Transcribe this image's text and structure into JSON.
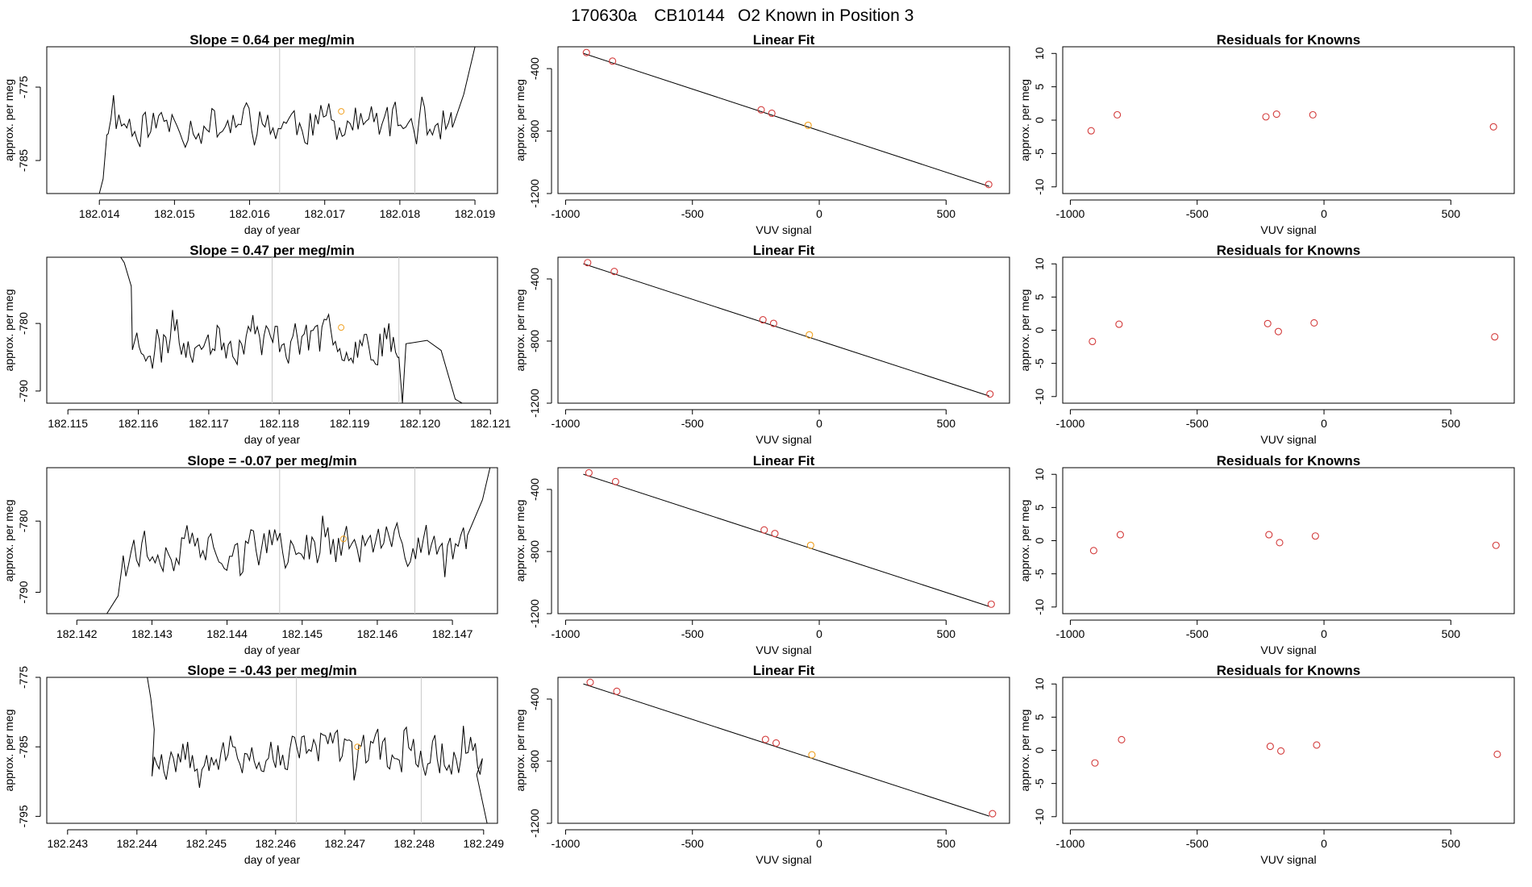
{
  "figure_title": {
    "date": "170630a",
    "cylinder": "CB10144",
    "description": "O2 Known in Position  3"
  },
  "colors": {
    "trace": "#000000",
    "point_red": "#d33c3c",
    "point_orange": "#f0a020",
    "vline": "#c8c8c8"
  },
  "chart_data": [
    {
      "type": "line",
      "row": 1,
      "panel": "timeseries",
      "title": "Slope =  0.64  per meg/min",
      "xlabel": "day of year",
      "ylabel": "approx. per meg",
      "xlim": [
        182.0133,
        182.0193
      ],
      "ylim": [
        -789.5,
        -769.5
      ],
      "xticks": [
        182.014,
        182.015,
        182.016,
        182.017,
        182.018,
        182.019
      ],
      "xtick_labels": [
        "182.014",
        "182.015",
        "182.016",
        "182.017",
        "182.018",
        "182.019"
      ],
      "yticks": [
        -775,
        -785
      ],
      "ytick_labels": [
        "-775",
        "-785"
      ],
      "vlines": [
        182.0164,
        182.0182
      ],
      "highlight_point": {
        "x": 182.01722,
        "y": -778.3
      },
      "trace": {
        "start": 182.0141,
        "end": 182.0187,
        "n": 130,
        "center": -780.0,
        "amp": 3.2,
        "seed": 11,
        "lead_in": [
          [
            182.014,
            -789.5
          ],
          [
            182.01405,
            -787.5
          ],
          [
            182.0141,
            -781.5
          ]
        ],
        "lead_out": [
          [
            182.0187,
            -780.5
          ],
          [
            182.01885,
            -776.0
          ],
          [
            182.019,
            -769.5
          ]
        ]
      }
    },
    {
      "type": "line",
      "row": 2,
      "panel": "timeseries",
      "title": "Slope =  0.47  per meg/min",
      "xlabel": "day of year",
      "ylabel": "approx. per meg",
      "xlim": [
        182.1147,
        182.1211
      ],
      "ylim": [
        -791.8,
        -770.2
      ],
      "xticks": [
        182.115,
        182.116,
        182.117,
        182.118,
        182.119,
        182.12,
        182.121
      ],
      "xtick_labels": [
        "182.115",
        "182.116",
        "182.117",
        "182.118",
        "182.119",
        "182.120",
        "182.121"
      ],
      "yticks": [
        -780,
        -790
      ],
      "ytick_labels": [
        "-780",
        "-790"
      ],
      "vlines": [
        182.1179,
        182.1197
      ],
      "highlight_point": {
        "x": 182.11888,
        "y": -780.6
      },
      "trace": {
        "start": 182.1159,
        "end": 182.1197,
        "n": 120,
        "center": -782.5,
        "amp": 3.4,
        "seed": 23,
        "lead_in": [
          [
            182.11575,
            -770.2
          ],
          [
            182.1158,
            -771.0
          ],
          [
            182.1159,
            -774.5
          ]
        ],
        "lead_out": [
          [
            182.1197,
            -785.0
          ],
          [
            182.11975,
            -791.8
          ],
          [
            182.1198,
            -783.0
          ],
          [
            182.1201,
            -782.5
          ],
          [
            182.1203,
            -784.0
          ],
          [
            182.1205,
            -791.2
          ],
          [
            182.1206,
            -791.8
          ]
        ]
      }
    },
    {
      "type": "line",
      "row": 3,
      "panel": "timeseries",
      "title": "Slope =  -0.07  per meg/min",
      "xlabel": "day of year",
      "ylabel": "approx. per meg",
      "xlim": [
        182.1416,
        182.1476
      ],
      "ylim": [
        -793.0,
        -772.5
      ],
      "xticks": [
        182.142,
        182.143,
        182.144,
        182.145,
        182.146,
        182.147
      ],
      "xtick_labels": [
        "182.142",
        "182.143",
        "182.144",
        "182.145",
        "182.146",
        "182.147"
      ],
      "yticks": [
        -780,
        -790
      ],
      "ytick_labels": [
        "-780",
        "-790"
      ],
      "vlines": [
        182.1447,
        182.1465
      ],
      "highlight_point": {
        "x": 182.14555,
        "y": -782.5
      },
      "trace": {
        "start": 182.1426,
        "end": 182.1472,
        "n": 130,
        "center": -783.5,
        "amp": 3.3,
        "seed": 37,
        "lead_in": [
          [
            182.1424,
            -793.0
          ],
          [
            182.14255,
            -790.5
          ],
          [
            182.1426,
            -786.5
          ]
        ],
        "lead_out": [
          [
            182.1472,
            -782.0
          ],
          [
            182.1474,
            -777.0
          ],
          [
            182.1475,
            -772.5
          ]
        ]
      }
    },
    {
      "type": "line",
      "row": 4,
      "panel": "timeseries",
      "title": "Slope =  -0.43  per meg/min",
      "xlabel": "day of year",
      "ylabel": "approx. per meg",
      "xlim": [
        182.2427,
        182.2492
      ],
      "ylim": [
        -796.0,
        -775.0
      ],
      "xticks": [
        182.243,
        182.244,
        182.245,
        182.246,
        182.247,
        182.248,
        182.249
      ],
      "xtick_labels": [
        "182.243",
        "182.244",
        "182.245",
        "182.246",
        "182.247",
        "182.248",
        "182.249"
      ],
      "yticks": [
        -775,
        -785,
        -795
      ],
      "ytick_labels": [
        "-775",
        "-785",
        "-795"
      ],
      "vlines": [
        182.2463,
        182.2481
      ],
      "highlight_point": {
        "x": 182.24718,
        "y": -785.0
      },
      "trace": {
        "start": 182.2442,
        "end": 182.249,
        "n": 140,
        "center": -786.0,
        "amp": 3.3,
        "seed": 53,
        "lead_in": [
          [
            182.24415,
            -775.0
          ],
          [
            182.2442,
            -778.0
          ],
          [
            182.24425,
            -782.5
          ]
        ],
        "lead_out": [
          [
            182.2489,
            -789.0
          ],
          [
            182.24905,
            -796.0
          ]
        ]
      }
    },
    {
      "type": "scatter",
      "row": 1,
      "panel": "fit",
      "title": "Linear Fit",
      "xlabel": "VUV signal",
      "ylabel": "approx. per meg",
      "xlim": [
        -1030,
        750
      ],
      "ylim": [
        -1200,
        -260
      ],
      "xticks": [
        -1000,
        -500,
        0,
        500
      ],
      "xtick_labels": [
        "-1000",
        "-500",
        "0",
        "500"
      ],
      "yticks": [
        -400,
        -800,
        -1200
      ],
      "ytick_labels": [
        "-400",
        "-800",
        "-1200"
      ],
      "fit_line": [
        [
          -930,
          -302
        ],
        [
          670,
          -1154
        ]
      ],
      "points": [
        {
          "x": -918,
          "y": -297,
          "color": "red"
        },
        {
          "x": -815,
          "y": -352,
          "color": "red"
        },
        {
          "x": -229,
          "y": -664,
          "color": "red"
        },
        {
          "x": -187,
          "y": -686,
          "color": "red"
        },
        {
          "x": -44,
          "y": -763,
          "color": "orange"
        },
        {
          "x": 668,
          "y": -1142,
          "color": "red"
        }
      ]
    },
    {
      "type": "scatter",
      "row": 2,
      "panel": "fit",
      "title": "Linear Fit",
      "xlabel": "VUV signal",
      "ylabel": "approx. per meg",
      "xlim": [
        -1030,
        750
      ],
      "ylim": [
        -1200,
        -260
      ],
      "xticks": [
        -1000,
        -500,
        0,
        500
      ],
      "xtick_labels": [
        "-1000",
        "-500",
        "0",
        "500"
      ],
      "yticks": [
        -400,
        -800,
        -1200
      ],
      "ytick_labels": [
        "-400",
        "-800",
        "-1200"
      ],
      "fit_line": [
        [
          -930,
          -302
        ],
        [
          670,
          -1154
        ]
      ],
      "points": [
        {
          "x": -913,
          "y": -295,
          "color": "red"
        },
        {
          "x": -808,
          "y": -352,
          "color": "red"
        },
        {
          "x": -222,
          "y": -663,
          "color": "red"
        },
        {
          "x": -180,
          "y": -686,
          "color": "red"
        },
        {
          "x": -39,
          "y": -760,
          "color": "orange"
        },
        {
          "x": 673,
          "y": -1141,
          "color": "red"
        }
      ]
    },
    {
      "type": "scatter",
      "row": 3,
      "panel": "fit",
      "title": "Linear Fit",
      "xlabel": "VUV signal",
      "ylabel": "approx. per meg",
      "xlim": [
        -1030,
        750
      ],
      "ylim": [
        -1200,
        -260
      ],
      "xticks": [
        -1000,
        -500,
        0,
        500
      ],
      "xtick_labels": [
        "-1000",
        "-500",
        "0",
        "500"
      ],
      "yticks": [
        -400,
        -800,
        -1200
      ],
      "ytick_labels": [
        "-400",
        "-800",
        "-1200"
      ],
      "fit_line": [
        [
          -930,
          -302
        ],
        [
          670,
          -1154
        ]
      ],
      "points": [
        {
          "x": -908,
          "y": -293,
          "color": "red"
        },
        {
          "x": -803,
          "y": -350,
          "color": "red"
        },
        {
          "x": -217,
          "y": -661,
          "color": "red"
        },
        {
          "x": -175,
          "y": -684,
          "color": "red"
        },
        {
          "x": -34,
          "y": -760,
          "color": "orange"
        },
        {
          "x": 678,
          "y": -1139,
          "color": "red"
        }
      ]
    },
    {
      "type": "scatter",
      "row": 4,
      "panel": "fit",
      "title": "Linear Fit",
      "xlabel": "VUV signal",
      "ylabel": "approx. per meg",
      "xlim": [
        -1030,
        750
      ],
      "ylim": [
        -1200,
        -260
      ],
      "xticks": [
        -1000,
        -500,
        0,
        500
      ],
      "xtick_labels": [
        "-1000",
        "-500",
        "0",
        "500"
      ],
      "yticks": [
        -400,
        -800,
        -1200
      ],
      "ytick_labels": [
        "-400",
        "-800",
        "-1200"
      ],
      "fit_line": [
        [
          -930,
          -302
        ],
        [
          670,
          -1154
        ]
      ],
      "points": [
        {
          "x": -903,
          "y": -292,
          "color": "red"
        },
        {
          "x": -798,
          "y": -350,
          "color": "red"
        },
        {
          "x": -212,
          "y": -660,
          "color": "red"
        },
        {
          "x": -170,
          "y": -683,
          "color": "red"
        },
        {
          "x": -29,
          "y": -759,
          "color": "orange"
        },
        {
          "x": 683,
          "y": -1138,
          "color": "red"
        }
      ]
    },
    {
      "type": "scatter",
      "row": 1,
      "panel": "residuals",
      "title": "Residuals for Knowns",
      "xlabel": "VUV signal",
      "ylabel": "approx. per meg",
      "xlim": [
        -1030,
        750
      ],
      "ylim": [
        -11,
        11
      ],
      "xticks": [
        -1000,
        -500,
        0,
        500
      ],
      "xtick_labels": [
        "-1000",
        "-500",
        "0",
        "500"
      ],
      "yticks": [
        10,
        5,
        0,
        -5,
        -10
      ],
      "ytick_labels": [
        "10",
        "5",
        "0",
        "-5",
        "-10"
      ],
      "points": [
        {
          "x": -918,
          "y": -1.6,
          "color": "red"
        },
        {
          "x": -815,
          "y": 0.8,
          "color": "red"
        },
        {
          "x": -229,
          "y": 0.5,
          "color": "red"
        },
        {
          "x": -187,
          "y": 0.9,
          "color": "red"
        },
        {
          "x": -44,
          "y": 0.8,
          "color": "red"
        },
        {
          "x": 668,
          "y": -1.0,
          "color": "red"
        }
      ]
    },
    {
      "type": "scatter",
      "row": 2,
      "panel": "residuals",
      "title": "Residuals for Knowns",
      "xlabel": "VUV signal",
      "ylabel": "approx. per meg",
      "xlim": [
        -1030,
        750
      ],
      "ylim": [
        -11,
        11
      ],
      "xticks": [
        -1000,
        -500,
        0,
        500
      ],
      "xtick_labels": [
        "-1000",
        "-500",
        "0",
        "500"
      ],
      "yticks": [
        10,
        5,
        0,
        -5,
        -10
      ],
      "ytick_labels": [
        "10",
        "5",
        "0",
        "-5",
        "-10"
      ],
      "points": [
        {
          "x": -913,
          "y": -1.7,
          "color": "red"
        },
        {
          "x": -808,
          "y": 0.9,
          "color": "red"
        },
        {
          "x": -222,
          "y": 1.0,
          "color": "red"
        },
        {
          "x": -180,
          "y": -0.2,
          "color": "red"
        },
        {
          "x": -39,
          "y": 1.1,
          "color": "red"
        },
        {
          "x": 673,
          "y": -1.0,
          "color": "red"
        }
      ]
    },
    {
      "type": "scatter",
      "row": 3,
      "panel": "residuals",
      "title": "Residuals for Knowns",
      "xlabel": "VUV signal",
      "ylabel": "approx. per meg",
      "xlim": [
        -1030,
        750
      ],
      "ylim": [
        -11,
        11
      ],
      "xticks": [
        -1000,
        -500,
        0,
        500
      ],
      "xtick_labels": [
        "-1000",
        "-500",
        "0",
        "500"
      ],
      "yticks": [
        10,
        5,
        0,
        -5,
        -10
      ],
      "ytick_labels": [
        "10",
        "5",
        "0",
        "-5",
        "-10"
      ],
      "points": [
        {
          "x": -908,
          "y": -1.5,
          "color": "red"
        },
        {
          "x": -803,
          "y": 0.9,
          "color": "red"
        },
        {
          "x": -217,
          "y": 0.9,
          "color": "red"
        },
        {
          "x": -175,
          "y": -0.3,
          "color": "red"
        },
        {
          "x": -34,
          "y": 0.7,
          "color": "red"
        },
        {
          "x": 678,
          "y": -0.7,
          "color": "red"
        }
      ]
    },
    {
      "type": "scatter",
      "row": 4,
      "panel": "residuals",
      "title": "Residuals for Knowns",
      "xlabel": "VUV signal",
      "ylabel": "approx. per meg",
      "xlim": [
        -1030,
        750
      ],
      "ylim": [
        -11,
        11
      ],
      "xticks": [
        -1000,
        -500,
        0,
        500
      ],
      "xtick_labels": [
        "-1000",
        "-500",
        "0",
        "500"
      ],
      "yticks": [
        10,
        5,
        0,
        -5,
        -10
      ],
      "ytick_labels": [
        "10",
        "5",
        "0",
        "-5",
        "-10"
      ],
      "points": [
        {
          "x": -903,
          "y": -1.9,
          "color": "red"
        },
        {
          "x": -798,
          "y": 1.6,
          "color": "red"
        },
        {
          "x": -212,
          "y": 0.6,
          "color": "red"
        },
        {
          "x": -170,
          "y": -0.1,
          "color": "red"
        },
        {
          "x": -29,
          "y": 0.8,
          "color": "red"
        },
        {
          "x": 683,
          "y": -0.6,
          "color": "red"
        }
      ]
    }
  ]
}
